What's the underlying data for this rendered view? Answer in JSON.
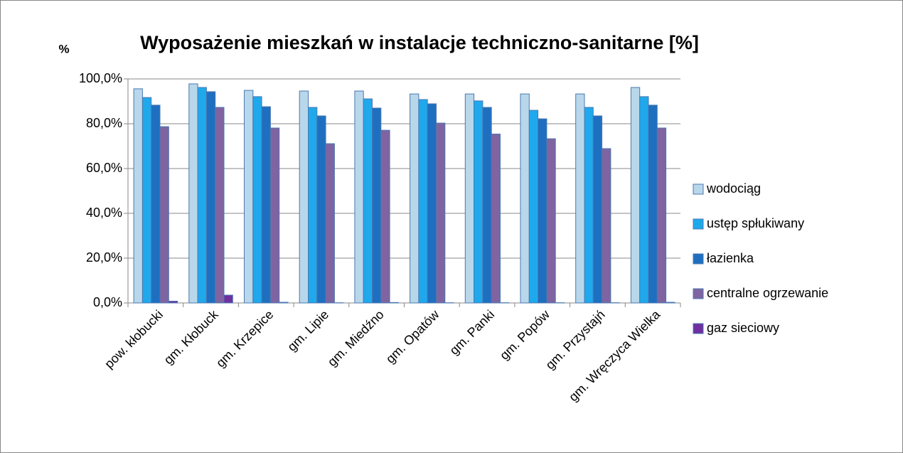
{
  "chart_data": {
    "type": "bar",
    "title": "Wyposażenie mieszkań w instalacje techniczno-sanitarne [%]",
    "y_label": "%",
    "categories": [
      "pow. kłobucki",
      "gm. Kłobuck",
      "gm. Krzepice",
      "gm. Lipie",
      "gm. Miedźno",
      "gm. Opatów",
      "gm. Panki",
      "gm. Popów",
      "gm. Przystajń",
      "gm. Wręczyca Wielka"
    ],
    "series": [
      {
        "name": "wodociąg",
        "color": "#b9d7ea",
        "values": [
          95.6,
          97.8,
          94.9,
          94.6,
          94.6,
          93.3,
          93.3,
          93.3,
          93.3,
          96.2
        ]
      },
      {
        "name": "ustęp spłukiwany",
        "color": "#1fa9ec",
        "values": [
          91.7,
          96.2,
          92.1,
          87.3,
          91.1,
          90.8,
          90.2,
          86.0,
          87.3,
          92.1
        ]
      },
      {
        "name": "łazienka",
        "color": "#1f6fc0",
        "values": [
          88.3,
          94.3,
          87.6,
          83.5,
          87.0,
          88.9,
          87.3,
          82.2,
          83.5,
          88.3
        ]
      },
      {
        "name": "centralne ogrzewanie",
        "color": "#8064a2",
        "values": [
          78.7,
          87.3,
          78.1,
          71.1,
          77.1,
          80.3,
          75.4,
          73.3,
          68.9,
          78.1
        ]
      },
      {
        "name": "gaz sieciowy",
        "color": "#7030a0",
        "values": [
          0.8,
          3.5,
          0.3,
          0.1,
          0.2,
          0.1,
          0.1,
          0.1,
          0.1,
          0.3
        ]
      }
    ],
    "ylim": [
      0,
      100
    ],
    "yticks": [
      {
        "value": 0,
        "label": "0,0%"
      },
      {
        "value": 20,
        "label": "20,0%"
      },
      {
        "value": 40,
        "label": "40,0%"
      },
      {
        "value": 60,
        "label": "60,0%"
      },
      {
        "value": 80,
        "label": "80,0%"
      },
      {
        "value": 100,
        "label": "100,0%"
      }
    ],
    "grid": true,
    "legend": "right"
  }
}
